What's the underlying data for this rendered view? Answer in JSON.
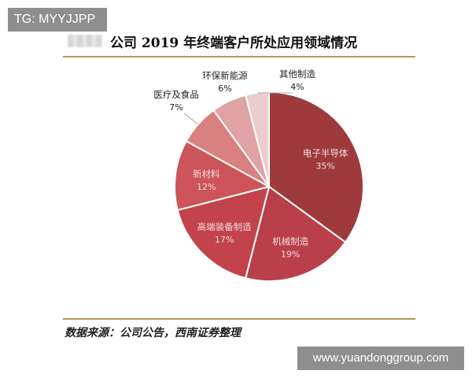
{
  "badge": {
    "text": "TG: MYYJJPP"
  },
  "watermark": {
    "text": "www.yuandonggroup.com"
  },
  "source": {
    "text": "数据来源：公司公告，西南证券整理"
  },
  "chart_data": {
    "type": "pie",
    "title": "公司 2019 年终端客户所处应用领域情况",
    "unit": "%",
    "slices": [
      {
        "name": "电子半导体",
        "value": 35,
        "label": "35%",
        "color": "#9e3a3c",
        "label_inside": true
      },
      {
        "name": "机械制造",
        "value": 19,
        "label": "19%",
        "color": "#b9404a",
        "label_inside": true
      },
      {
        "name": "高端装备制造",
        "value": 17,
        "label": "17%",
        "color": "#c2434c",
        "label_inside": true
      },
      {
        "name": "新材料",
        "value": 12,
        "label": "12%",
        "color": "#cd5458",
        "label_inside": true
      },
      {
        "name": "医疗及食品",
        "value": 7,
        "label": "7%",
        "color": "#d98080",
        "label_inside": false
      },
      {
        "name": "环保新能源",
        "value": 6,
        "label": "6%",
        "color": "#e0a2a3",
        "label_inside": false
      },
      {
        "name": "其他制造",
        "value": 4,
        "label": "4%",
        "color": "#ebcdcd",
        "label_inside": false
      }
    ]
  }
}
